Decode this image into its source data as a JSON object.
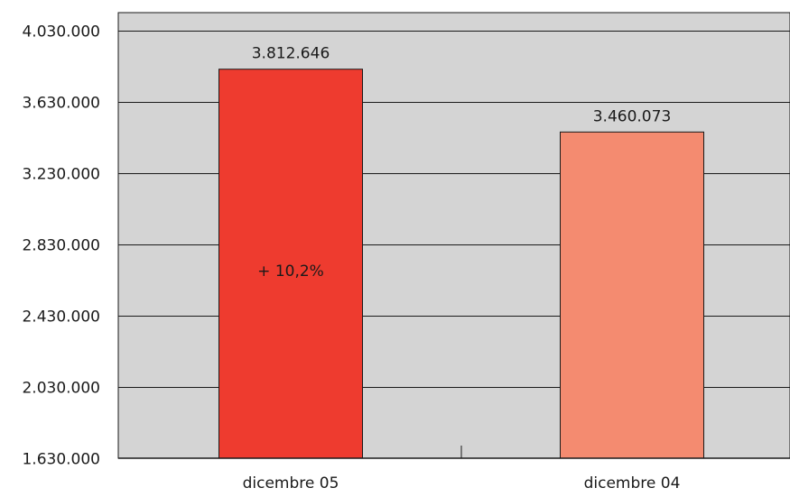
{
  "chart_data": {
    "type": "bar",
    "categories": [
      "dicembre 05",
      "dicembre 04"
    ],
    "values": [
      3812646,
      3460073
    ],
    "value_labels": [
      "3.812.646",
      "3.460.073"
    ],
    "bar_colors": [
      "#ee3b2f",
      "#f48b70"
    ],
    "annotation": "+ 10,2%",
    "y_ticks": [
      1630000,
      2030000,
      2430000,
      2830000,
      3230000,
      3630000,
      4030000
    ],
    "y_tick_labels": [
      "1.630.000",
      "2.030.000",
      "2.430.000",
      "2.830.000",
      "3.230.000",
      "3.630.000",
      "4.030.000"
    ],
    "ylim": [
      1630000,
      4130000
    ],
    "grid": true,
    "title": "",
    "xlabel": "",
    "ylabel": "",
    "colors": {
      "plot_background": "#d4d4d4",
      "grid": "#1a1a1a",
      "text": "#1a1a1a"
    }
  }
}
